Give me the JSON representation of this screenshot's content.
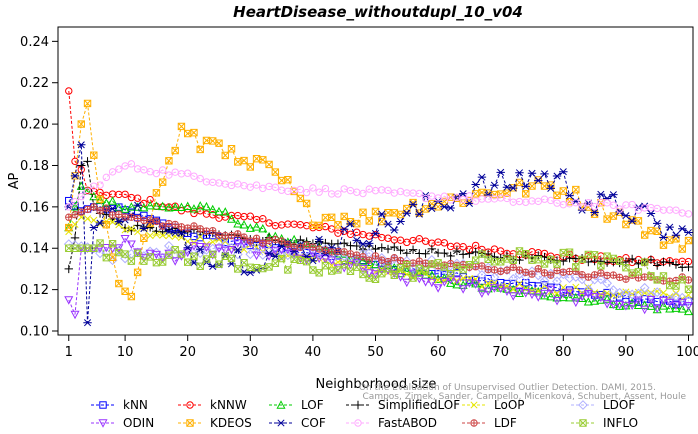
{
  "chart_data": {
    "type": "line",
    "title": "HeartDisease_withoutdupl_10_v04",
    "xlabel": "Neighborhood size",
    "ylabel": "AP",
    "xlim": [
      0,
      100
    ],
    "ylim": [
      0.1,
      0.245
    ],
    "xticks": [
      1,
      10,
      20,
      30,
      40,
      50,
      60,
      70,
      80,
      90,
      100
    ],
    "yticks": [
      0.1,
      0.12,
      0.14,
      0.16,
      0.18,
      0.2,
      0.22,
      0.24
    ],
    "grid": false,
    "legend_position": "bottom",
    "credit": [
      "Campos, Zimek, Sander, Campello, Micenková, Schubert, Assent, Houle",
      "On the Evaluation of Unsupervised Outlier Detection. DAMI, 2015."
    ],
    "series": [
      {
        "name": "kNN",
        "color": "#0000ff",
        "marker": "square",
        "knots": [
          [
            1,
            0.163
          ],
          [
            3,
            0.158
          ],
          [
            5,
            0.16
          ],
          [
            10,
            0.158
          ],
          [
            20,
            0.147
          ],
          [
            30,
            0.142
          ],
          [
            40,
            0.138
          ],
          [
            50,
            0.132
          ],
          [
            60,
            0.128
          ],
          [
            70,
            0.124
          ],
          [
            80,
            0.12
          ],
          [
            90,
            0.116
          ],
          [
            100,
            0.113
          ]
        ]
      },
      {
        "name": "kNNW",
        "color": "#ff0000",
        "marker": "circle",
        "knots": [
          [
            1,
            0.216
          ],
          [
            2,
            0.182
          ],
          [
            3,
            0.178
          ],
          [
            4,
            0.168
          ],
          [
            10,
            0.165
          ],
          [
            20,
            0.158
          ],
          [
            30,
            0.154
          ],
          [
            40,
            0.15
          ],
          [
            50,
            0.146
          ],
          [
            60,
            0.142
          ],
          [
            70,
            0.139
          ],
          [
            80,
            0.136
          ],
          [
            90,
            0.134
          ],
          [
            100,
            0.133
          ]
        ]
      },
      {
        "name": "LOF",
        "color": "#00cc00",
        "marker": "triangle-up",
        "knots": [
          [
            1,
            0.15
          ],
          [
            3,
            0.17
          ],
          [
            5,
            0.165
          ],
          [
            10,
            0.16
          ],
          [
            20,
            0.16
          ],
          [
            25,
            0.158
          ],
          [
            30,
            0.15
          ],
          [
            40,
            0.14
          ],
          [
            50,
            0.132
          ],
          [
            60,
            0.125
          ],
          [
            70,
            0.12
          ],
          [
            80,
            0.117
          ],
          [
            90,
            0.113
          ],
          [
            100,
            0.11
          ]
        ]
      },
      {
        "name": "SimplifiedLOF",
        "color": "#000000",
        "marker": "plus",
        "knots": [
          [
            1,
            0.13
          ],
          [
            2,
            0.145
          ],
          [
            3,
            0.18
          ],
          [
            4,
            0.182
          ],
          [
            5,
            0.16
          ],
          [
            10,
            0.15
          ],
          [
            20,
            0.148
          ],
          [
            30,
            0.145
          ],
          [
            40,
            0.142
          ],
          [
            50,
            0.14
          ],
          [
            60,
            0.138
          ],
          [
            70,
            0.136
          ],
          [
            80,
            0.135
          ],
          [
            90,
            0.134
          ],
          [
            100,
            0.132
          ]
        ]
      },
      {
        "name": "LoOP",
        "color": "#e6e600",
        "marker": "x",
        "knots": [
          [
            1,
            0.148
          ],
          [
            3,
            0.155
          ],
          [
            10,
            0.15
          ],
          [
            20,
            0.145
          ],
          [
            30,
            0.14
          ],
          [
            40,
            0.135
          ],
          [
            50,
            0.13
          ],
          [
            60,
            0.125
          ],
          [
            70,
            0.122
          ],
          [
            80,
            0.12
          ],
          [
            90,
            0.118
          ],
          [
            100,
            0.117
          ]
        ]
      },
      {
        "name": "LDOF",
        "color": "#b0b0ff",
        "marker": "diamond",
        "knots": [
          [
            1,
            0.142
          ],
          [
            5,
            0.14
          ],
          [
            10,
            0.135
          ],
          [
            20,
            0.14
          ],
          [
            30,
            0.14
          ],
          [
            40,
            0.138
          ],
          [
            50,
            0.135
          ],
          [
            60,
            0.132
          ],
          [
            70,
            0.128
          ],
          [
            80,
            0.125
          ],
          [
            90,
            0.12
          ],
          [
            100,
            0.115
          ]
        ]
      },
      {
        "name": "ODIN",
        "color": "#9933ff",
        "marker": "triangle-down",
        "knots": [
          [
            1,
            0.115
          ],
          [
            2,
            0.108
          ],
          [
            3,
            0.14
          ],
          [
            5,
            0.14
          ],
          [
            10,
            0.142
          ],
          [
            15,
            0.135
          ],
          [
            20,
            0.138
          ],
          [
            30,
            0.14
          ],
          [
            40,
            0.135
          ],
          [
            50,
            0.128
          ],
          [
            60,
            0.123
          ],
          [
            70,
            0.12
          ],
          [
            80,
            0.117
          ],
          [
            90,
            0.113
          ],
          [
            100,
            0.112
          ]
        ]
      },
      {
        "name": "KDEOS",
        "color": "#ffb000",
        "marker": "square-x",
        "knots": [
          [
            1,
            0.15
          ],
          [
            3,
            0.2
          ],
          [
            4,
            0.21
          ],
          [
            6,
            0.16
          ],
          [
            9,
            0.125
          ],
          [
            11,
            0.12
          ],
          [
            15,
            0.165
          ],
          [
            19,
            0.197
          ],
          [
            22,
            0.19
          ],
          [
            25,
            0.193
          ],
          [
            28,
            0.18
          ],
          [
            32,
            0.18
          ],
          [
            36,
            0.17
          ],
          [
            38,
            0.162
          ],
          [
            40,
            0.155
          ],
          [
            50,
            0.155
          ],
          [
            55,
            0.16
          ],
          [
            60,
            0.162
          ],
          [
            65,
            0.165
          ],
          [
            70,
            0.168
          ],
          [
            78,
            0.17
          ],
          [
            82,
            0.165
          ],
          [
            85,
            0.16
          ],
          [
            90,
            0.155
          ],
          [
            95,
            0.145
          ],
          [
            100,
            0.143
          ]
        ]
      },
      {
        "name": "COF",
        "color": "#000099",
        "marker": "asterisk",
        "knots": [
          [
            1,
            0.16
          ],
          [
            3,
            0.19
          ],
          [
            4,
            0.104
          ],
          [
            5,
            0.15
          ],
          [
            10,
            0.16
          ],
          [
            20,
            0.14
          ],
          [
            30,
            0.135
          ],
          [
            40,
            0.14
          ],
          [
            45,
            0.145
          ],
          [
            50,
            0.15
          ],
          [
            55,
            0.155
          ],
          [
            60,
            0.162
          ],
          [
            65,
            0.168
          ],
          [
            70,
            0.17
          ],
          [
            75,
            0.175
          ],
          [
            80,
            0.172
          ],
          [
            85,
            0.16
          ],
          [
            90,
            0.16
          ],
          [
            95,
            0.15
          ],
          [
            100,
            0.145
          ]
        ]
      },
      {
        "name": "FastABOD",
        "color": "#ffaaff",
        "marker": "circle",
        "knots": [
          [
            1,
            0.16
          ],
          [
            5,
            0.17
          ],
          [
            10,
            0.18
          ],
          [
            20,
            0.175
          ],
          [
            30,
            0.17
          ],
          [
            40,
            0.168
          ],
          [
            50,
            0.167
          ],
          [
            60,
            0.165
          ],
          [
            70,
            0.163
          ],
          [
            80,
            0.162
          ],
          [
            90,
            0.16
          ],
          [
            100,
            0.158
          ]
        ]
      },
      {
        "name": "LDF",
        "color": "#cc4444",
        "marker": "circle-plus",
        "knots": [
          [
            1,
            0.155
          ],
          [
            5,
            0.16
          ],
          [
            10,
            0.155
          ],
          [
            20,
            0.15
          ],
          [
            30,
            0.145
          ],
          [
            40,
            0.14
          ],
          [
            50,
            0.135
          ],
          [
            60,
            0.132
          ],
          [
            70,
            0.13
          ],
          [
            80,
            0.128
          ],
          [
            90,
            0.126
          ],
          [
            100,
            0.125
          ]
        ]
      },
      {
        "name": "INFLO",
        "color": "#99cc33",
        "marker": "square-x",
        "knots": [
          [
            1,
            0.14
          ],
          [
            5,
            0.14
          ],
          [
            10,
            0.138
          ],
          [
            20,
            0.135
          ],
          [
            30,
            0.133
          ],
          [
            40,
            0.13
          ],
          [
            50,
            0.128
          ],
          [
            60,
            0.13
          ],
          [
            70,
            0.135
          ],
          [
            80,
            0.135
          ],
          [
            90,
            0.132
          ],
          [
            95,
            0.128
          ],
          [
            100,
            0.12
          ]
        ]
      }
    ]
  }
}
